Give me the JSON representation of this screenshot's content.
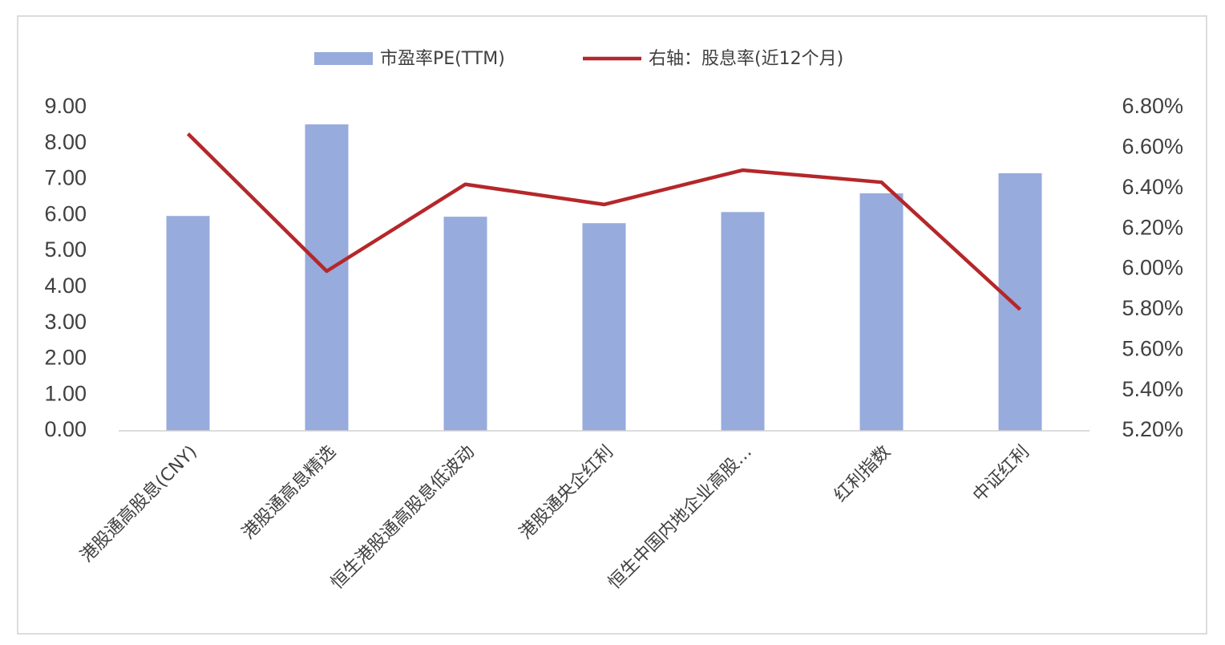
{
  "chart_data": {
    "type": "bar_line",
    "categories": [
      "港股通高股息(CNY)",
      "港股通高息精选",
      "恒生港股通高股息低波动",
      "港股通央企红利",
      "恒生中国内地企业高股…",
      "红利指数",
      "中证红利"
    ],
    "series": [
      {
        "name": "市盈率PE(TTM)",
        "type": "bar",
        "color": "#97abdc",
        "values": [
          5.98,
          8.53,
          5.96,
          5.78,
          6.09,
          6.61,
          7.17
        ]
      },
      {
        "name": "右轴：股息率(近12个月)",
        "type": "line",
        "axis": "y2",
        "color": "#b5272a",
        "values": [
          6.67,
          5.99,
          6.42,
          6.32,
          6.49,
          6.43,
          5.8
        ]
      }
    ],
    "ylim": [
      0,
      9
    ],
    "yticks": [
      {
        "value": 0,
        "label": "0.00"
      },
      {
        "value": 1,
        "label": "1.00"
      },
      {
        "value": 2,
        "label": "2.00"
      },
      {
        "value": 3,
        "label": "3.00"
      },
      {
        "value": 4,
        "label": "4.00"
      },
      {
        "value": 5,
        "label": "5.00"
      },
      {
        "value": 6,
        "label": "6.00"
      },
      {
        "value": 7,
        "label": "7.00"
      },
      {
        "value": 8,
        "label": "8.00"
      },
      {
        "value": 9,
        "label": "9.00"
      }
    ],
    "y2lim": [
      5.2,
      6.8
    ],
    "y2ticks": [
      {
        "value": 5.2,
        "label": "5.20%"
      },
      {
        "value": 5.4,
        "label": "5.40%"
      },
      {
        "value": 5.6,
        "label": "5.60%"
      },
      {
        "value": 5.8,
        "label": "5.80%"
      },
      {
        "value": 6.0,
        "label": "6.00%"
      },
      {
        "value": 6.2,
        "label": "6.20%"
      },
      {
        "value": 6.4,
        "label": "6.40%"
      },
      {
        "value": 6.6,
        "label": "6.60%"
      },
      {
        "value": 6.8,
        "label": "6.80%"
      }
    ],
    "grid": false,
    "legend": "top"
  }
}
